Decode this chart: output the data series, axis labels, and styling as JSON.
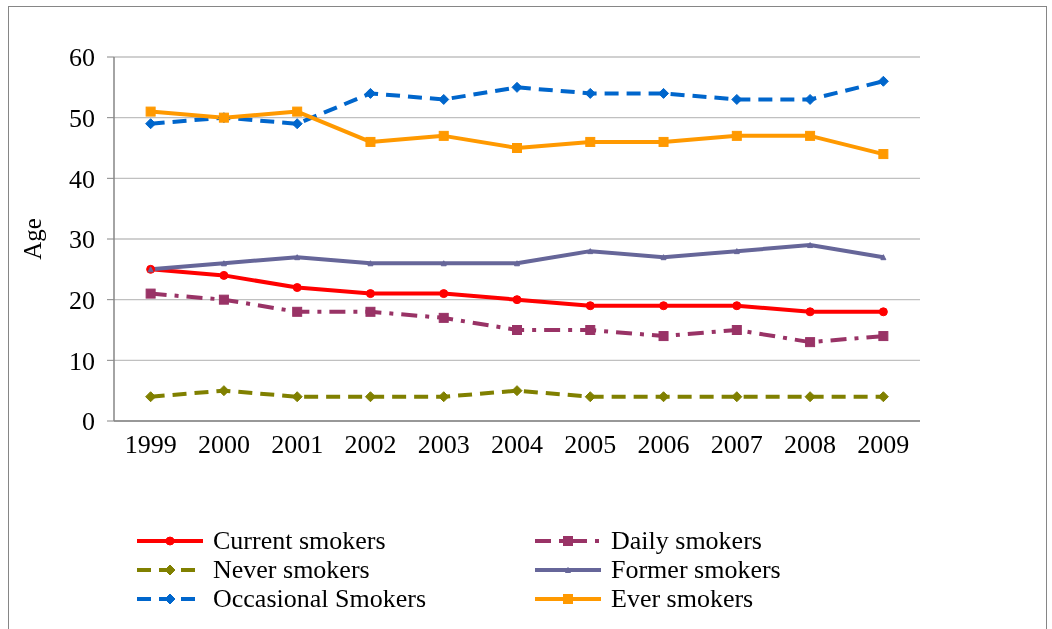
{
  "chart_data": {
    "type": "line",
    "ylabel": "Age",
    "categories": [
      "1999",
      "2000",
      "2001",
      "2002",
      "2003",
      "2004",
      "2005",
      "2006",
      "2007",
      "2008",
      "2009"
    ],
    "ylim": [
      0,
      60
    ],
    "yticks": [
      0,
      10,
      20,
      30,
      40,
      50,
      60
    ],
    "grid": "y",
    "legend": "bottom",
    "series": [
      {
        "name": "Current smokers",
        "color": "#ff0000",
        "marker": "circle",
        "line_style": "solid",
        "values": [
          25,
          24,
          22,
          21,
          21,
          20,
          19,
          19,
          19,
          18,
          18
        ]
      },
      {
        "name": "Daily smokers",
        "color": "#993366",
        "marker": "square",
        "line_style": "dashdot",
        "values": [
          21,
          20,
          18,
          18,
          17,
          15,
          15,
          14,
          15,
          13,
          14
        ]
      },
      {
        "name": "Never smokers",
        "color": "#808000",
        "marker": "diamond",
        "line_style": "dashed",
        "values": [
          4,
          5,
          4,
          4,
          4,
          5,
          4,
          4,
          4,
          4,
          4
        ]
      },
      {
        "name": "Former smokers",
        "color": "#666699",
        "marker": "triangle",
        "line_style": "solid",
        "values": [
          25,
          26,
          27,
          26,
          26,
          26,
          28,
          27,
          28,
          29,
          27
        ]
      },
      {
        "name": "Occasional Smokers",
        "color": "#0066cc",
        "marker": "diamond",
        "line_style": "dashed",
        "values": [
          49,
          50,
          49,
          54,
          53,
          55,
          54,
          54,
          53,
          53,
          56
        ]
      },
      {
        "name": "Ever smokers",
        "color": "#ff9900",
        "marker": "square",
        "line_style": "solid",
        "values": [
          51,
          50,
          51,
          46,
          47,
          45,
          46,
          46,
          47,
          47,
          44
        ]
      }
    ]
  }
}
